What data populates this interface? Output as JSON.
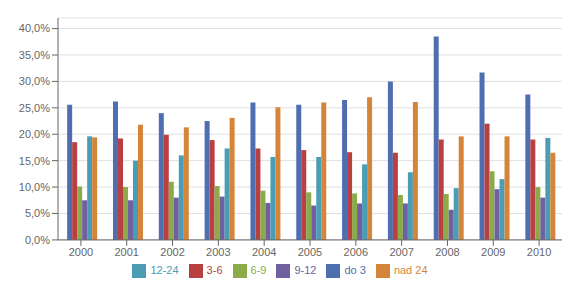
{
  "chart_data": {
    "type": "bar",
    "categories": [
      "2000",
      "2001",
      "2002",
      "2003",
      "2004",
      "2005",
      "2006",
      "2007",
      "2008",
      "2009",
      "2010"
    ],
    "series": [
      {
        "name": "do 3",
        "color": "#4F6EAF",
        "values": [
          0.256,
          0.262,
          0.24,
          0.225,
          0.26,
          0.256,
          0.265,
          0.3,
          0.385,
          0.317,
          0.275
        ]
      },
      {
        "name": "3-6",
        "color": "#B94040",
        "values": [
          0.185,
          0.192,
          0.199,
          0.189,
          0.173,
          0.17,
          0.166,
          0.165,
          0.19,
          0.22,
          0.19
        ]
      },
      {
        "name": "6-9",
        "color": "#8BAA4A",
        "values": [
          0.101,
          0.1,
          0.11,
          0.102,
          0.093,
          0.09,
          0.088,
          0.085,
          0.087,
          0.13,
          0.1
        ]
      },
      {
        "name": "9-12",
        "color": "#7060A0",
        "values": [
          0.075,
          0.075,
          0.08,
          0.082,
          0.07,
          0.065,
          0.069,
          0.069,
          0.057,
          0.096,
          0.08
        ]
      },
      {
        "name": "12-24",
        "color": "#4A9DB5",
        "values": [
          0.196,
          0.15,
          0.16,
          0.173,
          0.157,
          0.157,
          0.143,
          0.128,
          0.098,
          0.115,
          0.193
        ]
      },
      {
        "name": "nad 24",
        "color": "#D4853A",
        "values": [
          0.194,
          0.218,
          0.213,
          0.231,
          0.251,
          0.26,
          0.27,
          0.261,
          0.196,
          0.196,
          0.165
        ]
      }
    ],
    "ylim": [
      0.0,
      0.42
    ],
    "yticks": [
      {
        "value": 0.0,
        "label": "0,0%"
      },
      {
        "value": 0.05,
        "label": "5,0%"
      },
      {
        "value": 0.1,
        "label": "10,0%"
      },
      {
        "value": 0.15,
        "label": "15,0%"
      },
      {
        "value": 0.2,
        "label": "20,0%"
      },
      {
        "value": 0.25,
        "label": "25,0%"
      },
      {
        "value": 0.3,
        "label": "30,0%"
      },
      {
        "value": 0.35,
        "label": "35,0%"
      },
      {
        "value": 0.4,
        "label": "40,0%"
      }
    ],
    "grid": true,
    "legend": "bottom"
  }
}
